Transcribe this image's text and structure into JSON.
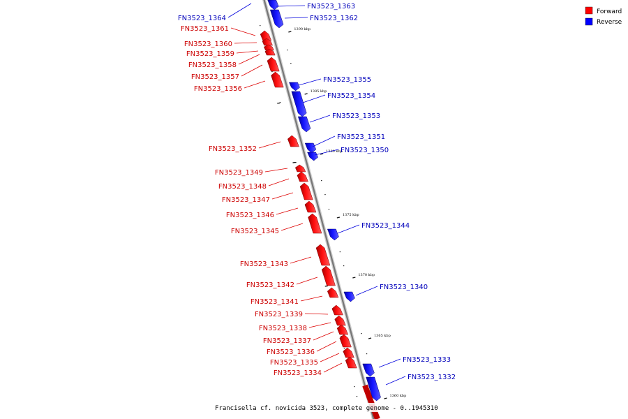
{
  "legend": {
    "forward_label": "Forward",
    "reverse_label": "Reverse",
    "forward_color": "#ff0000",
    "reverse_color": "#0000ff"
  },
  "caption": "Francisella cf. novicida 3523, complete genome - 0..1945310",
  "axis_color": "#888888",
  "kbp_ticks": [
    "1390 kbp",
    "1385 kbp",
    "1380 kbp",
    "1375 kbp",
    "1370 kbp",
    "1365 kbp",
    "1360 kbp"
  ],
  "genes_forward": [
    "FN3523_1361",
    "FN3523_1360",
    "FN3523_1359",
    "FN3523_1358",
    "FN3523_1357",
    "FN3523_1356",
    "FN3523_1352",
    "FN3523_1349",
    "FN3523_1348",
    "FN3523_1347",
    "FN3523_1346",
    "FN3523_1345",
    "FN3523_1343",
    "FN3523_1342",
    "FN3523_1341",
    "FN3523_1339",
    "FN3523_1338",
    "FN3523_1337",
    "FN3523_1336",
    "FN3523_1335",
    "FN3523_1334"
  ],
  "genes_reverse": [
    "FN3523_1364",
    "FN3523_1363",
    "FN3523_1362",
    "FN3523_1355",
    "FN3523_1354",
    "FN3523_1353",
    "FN3523_1351",
    "FN3523_1350",
    "FN3523_1344",
    "FN3523_1340",
    "FN3523_1333",
    "FN3523_1332"
  ]
}
